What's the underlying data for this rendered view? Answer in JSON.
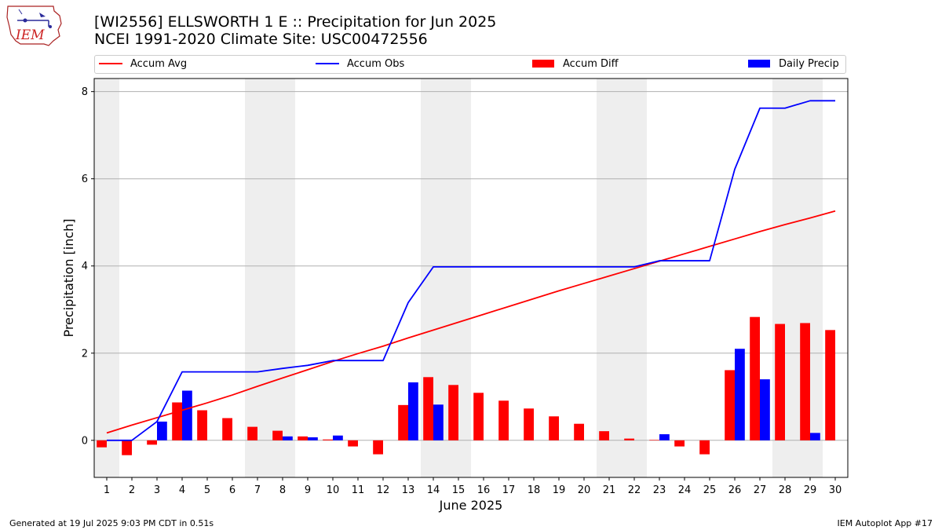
{
  "logo": {
    "text": "IEM"
  },
  "header": {
    "title": "[WI2556] ELLSWORTH 1 E :: Precipitation for Jun 2025",
    "subtitle": "NCEI 1991-2020 Climate Site: USC00472556"
  },
  "legend": {
    "items": [
      {
        "label": "Accum Avg",
        "kind": "line",
        "color": "#ff0000"
      },
      {
        "label": "Accum Obs",
        "kind": "line",
        "color": "#0000ff"
      },
      {
        "label": "Accum Diff",
        "kind": "bar",
        "color": "#ff0000"
      },
      {
        "label": "Daily Precip",
        "kind": "bar",
        "color": "#0000ff"
      }
    ]
  },
  "footer": {
    "left": "Generated at 19 Jul 2025 9:03 PM CDT in 0.51s",
    "right": "IEM Autoplot App #17"
  },
  "chart_data": {
    "type": "bar",
    "xlabel": "June 2025",
    "ylabel": "Precipitation [inch]",
    "x": [
      1,
      2,
      3,
      4,
      5,
      6,
      7,
      8,
      9,
      10,
      11,
      12,
      13,
      14,
      15,
      16,
      17,
      18,
      19,
      20,
      21,
      22,
      23,
      24,
      25,
      26,
      27,
      28,
      29,
      30
    ],
    "xlim": [
      0.5,
      30.5
    ],
    "ylim": [
      -0.85,
      8.3
    ],
    "yticks": [
      0,
      2,
      4,
      6,
      8
    ],
    "weekend_days": [
      1,
      7,
      8,
      14,
      15,
      21,
      22,
      28,
      29
    ],
    "grid": "y",
    "legend_position": "top",
    "series": [
      {
        "name": "Accum Avg",
        "type": "line",
        "color": "#ff0000",
        "values": [
          0.17,
          0.35,
          0.52,
          0.69,
          0.86,
          1.04,
          1.24,
          1.43,
          1.62,
          1.81,
          1.99,
          2.16,
          2.35,
          2.53,
          2.71,
          2.89,
          3.07,
          3.25,
          3.43,
          3.6,
          3.77,
          3.94,
          4.11,
          4.28,
          4.45,
          4.62,
          4.79,
          4.95,
          5.1,
          5.26
        ]
      },
      {
        "name": "Accum Obs",
        "type": "line",
        "color": "#0000ff",
        "values": [
          0,
          0,
          0.43,
          1.57,
          1.57,
          1.57,
          1.57,
          1.65,
          1.72,
          1.83,
          1.83,
          1.83,
          3.16,
          3.98,
          3.98,
          3.98,
          3.98,
          3.98,
          3.98,
          3.98,
          3.98,
          3.98,
          4.12,
          4.12,
          4.12,
          6.22,
          7.62,
          7.62,
          7.79,
          7.79
        ]
      },
      {
        "name": "Accum Diff",
        "type": "bar",
        "color": "#ff0000",
        "values": [
          -0.16,
          -0.34,
          -0.1,
          0.87,
          0.69,
          0.51,
          0.31,
          0.22,
          0.09,
          0.02,
          -0.14,
          -0.32,
          0.81,
          1.45,
          1.27,
          1.09,
          0.91,
          0.73,
          0.55,
          0.38,
          0.21,
          0.04,
          0.01,
          -0.14,
          -0.32,
          1.61,
          2.83,
          2.67,
          2.69,
          2.53
        ]
      },
      {
        "name": "Daily Precip",
        "type": "bar",
        "color": "#0000ff",
        "values": [
          0,
          0,
          0.43,
          1.14,
          0,
          0,
          0,
          0.09,
          0.07,
          0.11,
          0,
          0,
          1.33,
          0.82,
          0,
          0,
          0,
          0,
          0,
          0,
          0,
          0,
          0.14,
          0,
          0,
          2.1,
          1.4,
          0,
          0.17,
          0
        ]
      }
    ]
  }
}
